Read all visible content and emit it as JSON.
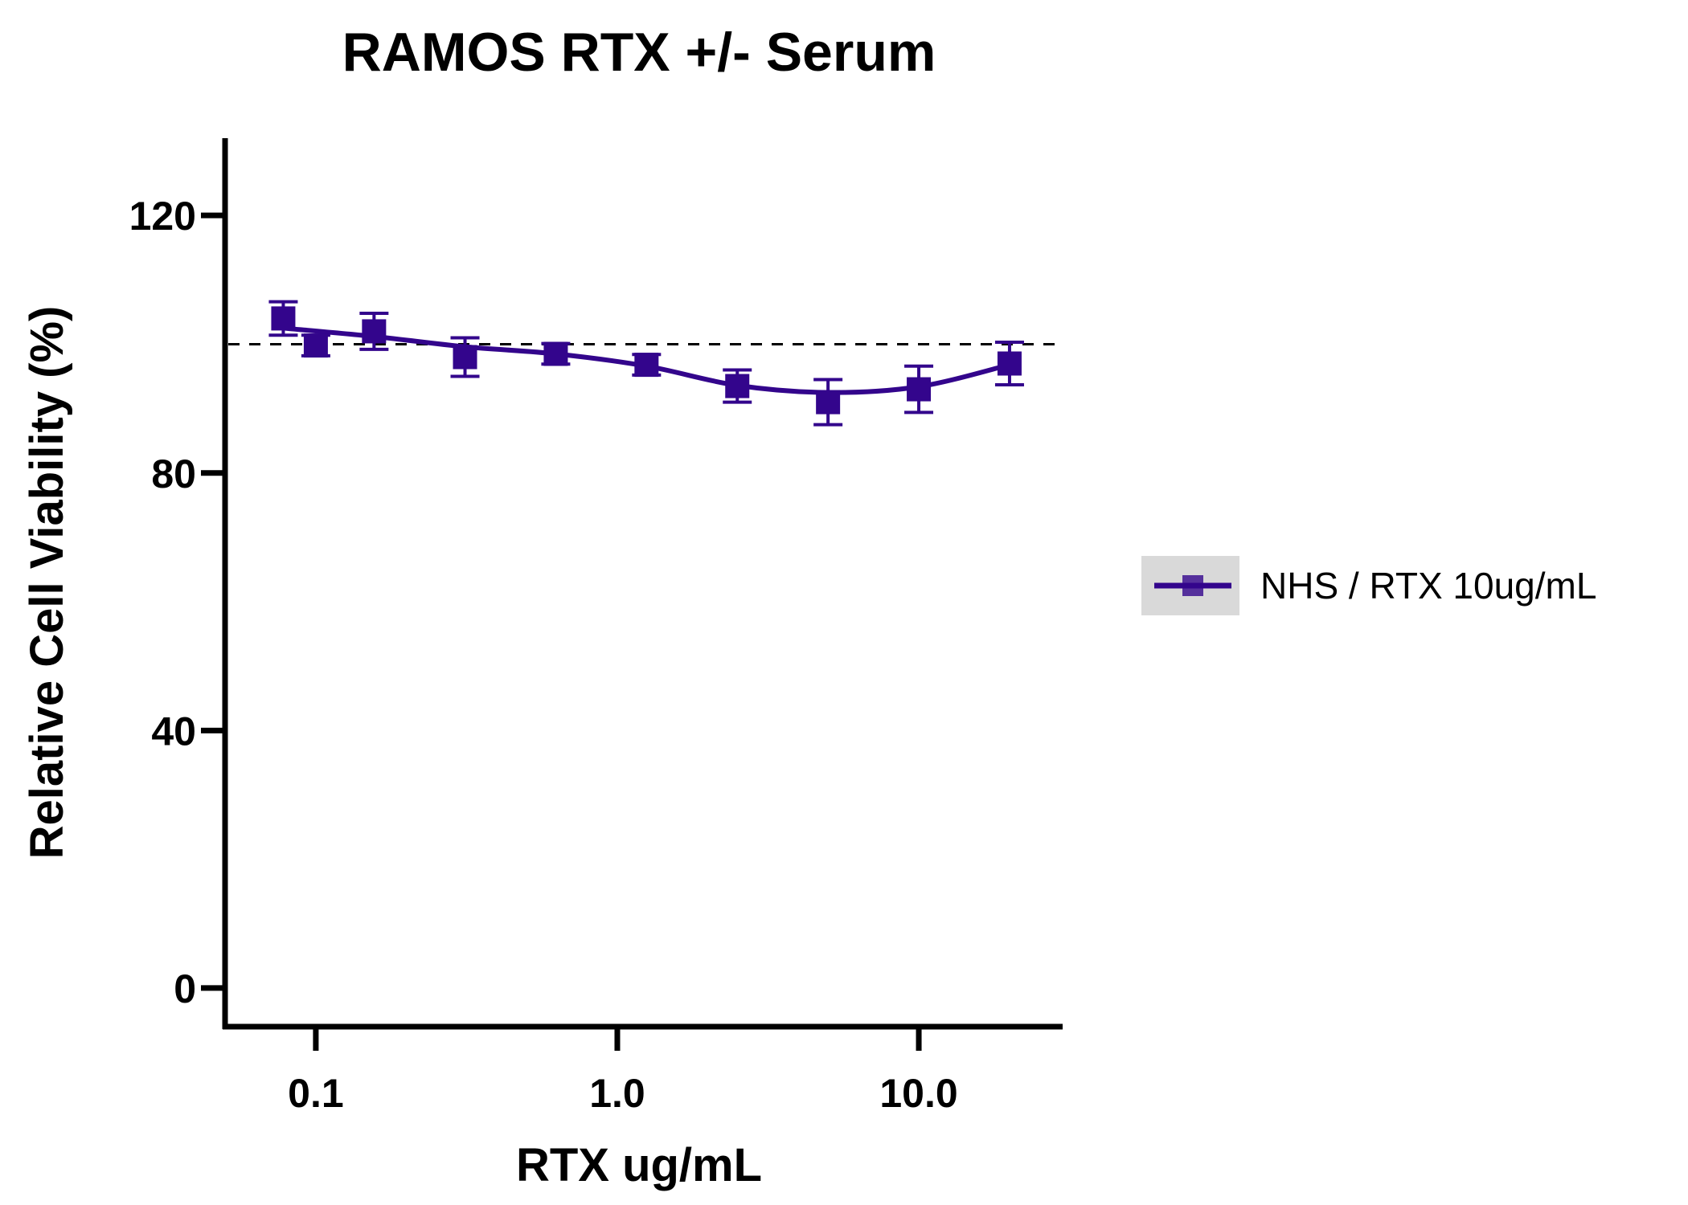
{
  "chart_data": {
    "type": "line",
    "title": "RAMOS RTX +/- Serum",
    "xlabel": "RTX ug/mL",
    "ylabel": "Relative Cell Viability (%)",
    "x_scale": "log",
    "xlim": [
      0.05,
      30
    ],
    "ylim": [
      -6,
      132
    ],
    "x_ticks": [
      {
        "value": 0.1,
        "label": "0.1"
      },
      {
        "value": 1.0,
        "label": "1.0"
      },
      {
        "value": 10.0,
        "label": "10.0"
      }
    ],
    "y_ticks": [
      {
        "value": 0,
        "label": "0"
      },
      {
        "value": 40,
        "label": "40"
      },
      {
        "value": 80,
        "label": "80"
      },
      {
        "value": 120,
        "label": "120"
      }
    ],
    "reference_line": {
      "y": 100,
      "style": "dashed",
      "color": "#000000"
    },
    "legend": {
      "placement": "right"
    },
    "grid": false,
    "series": [
      {
        "name": "NHS / RTX 10ug/mL",
        "color": "#33058C",
        "marker": "square",
        "points": [
          {
            "x": 0.078,
            "y": 104.0,
            "err": 2.6
          },
          {
            "x": 0.1,
            "y": 99.8,
            "err": 1.6
          },
          {
            "x": 0.156,
            "y": 102.0,
            "err": 2.8
          },
          {
            "x": 0.3125,
            "y": 98.0,
            "err": 3.0
          },
          {
            "x": 0.625,
            "y": 98.5,
            "err": 1.6
          },
          {
            "x": 1.25,
            "y": 96.8,
            "err": 1.6
          },
          {
            "x": 2.5,
            "y": 93.5,
            "err": 2.5
          },
          {
            "x": 5.0,
            "y": 91.0,
            "err": 3.5
          },
          {
            "x": 10.0,
            "y": 93.0,
            "err": 3.6
          },
          {
            "x": 20.0,
            "y": 97.0,
            "err": 3.3
          }
        ],
        "fit_curve": [
          {
            "x": 0.078,
            "y": 102.5
          },
          {
            "x": 0.156,
            "y": 101.2
          },
          {
            "x": 0.3125,
            "y": 99.6
          },
          {
            "x": 0.625,
            "y": 98.5
          },
          {
            "x": 1.25,
            "y": 96.6
          },
          {
            "x": 2.5,
            "y": 93.6
          },
          {
            "x": 5.0,
            "y": 92.5
          },
          {
            "x": 10.0,
            "y": 93.4
          },
          {
            "x": 20.0,
            "y": 96.8
          }
        ]
      }
    ]
  }
}
